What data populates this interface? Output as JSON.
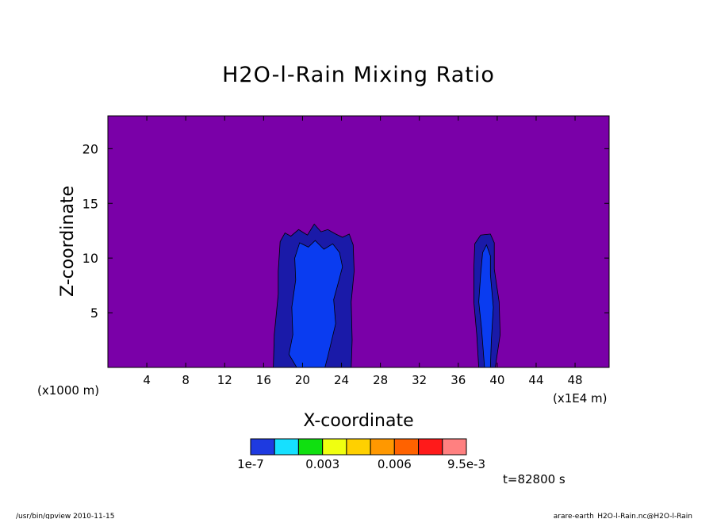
{
  "chart_data": {
    "type": "contour",
    "title": "H2O-l-Rain Mixing Ratio",
    "xlabel": "X-coordinate",
    "ylabel": "Z-coordinate",
    "x_unit_left": "(x1000 m)",
    "x_unit_right": "(x1E4 m)",
    "xlim": [
      0,
      51.5
    ],
    "ylim": [
      0,
      23
    ],
    "x_ticks": [
      4,
      8,
      12,
      16,
      20,
      24,
      28,
      32,
      36,
      40,
      44,
      48
    ],
    "y_ticks": [
      5,
      10,
      15,
      20
    ],
    "background_color": "#7a00a8",
    "levels": [
      {
        "color": "#1e3ae0"
      },
      {
        "color": "#16e0ff"
      },
      {
        "color": "#10e010"
      },
      {
        "color": "#f0ff10"
      },
      {
        "color": "#ffd000"
      },
      {
        "color": "#ff9800"
      },
      {
        "color": "#ff6200"
      },
      {
        "color": "#ff1a1a"
      },
      {
        "color": "#ff8080"
      }
    ],
    "colorbar_labels": [
      "1e-7",
      "0.003",
      "0.006",
      "9.5e-3"
    ],
    "regions": [
      {
        "level": "outer",
        "color": "#1a1aa8",
        "points": [
          [
            17.0,
            0
          ],
          [
            17.1,
            3
          ],
          [
            17.5,
            6.7
          ],
          [
            17.5,
            8.8
          ],
          [
            17.7,
            11.5
          ],
          [
            18.2,
            12.3
          ],
          [
            18.8,
            12.0
          ],
          [
            19.6,
            12.6
          ],
          [
            20.5,
            12.1
          ],
          [
            21.2,
            13.1
          ],
          [
            21.9,
            12.4
          ],
          [
            22.6,
            12.6
          ],
          [
            23.4,
            12.2
          ],
          [
            24.1,
            11.9
          ],
          [
            24.8,
            12.2
          ],
          [
            25.2,
            11.2
          ],
          [
            25.3,
            8.8
          ],
          [
            25.0,
            6.0
          ],
          [
            25.1,
            2.5
          ],
          [
            25.0,
            0
          ]
        ]
      },
      {
        "level": "inner",
        "color": "#0a3cf0",
        "points": [
          [
            19.4,
            0
          ],
          [
            18.6,
            1.2
          ],
          [
            19.0,
            3.0
          ],
          [
            18.9,
            5.5
          ],
          [
            19.3,
            8.0
          ],
          [
            19.2,
            10.0
          ],
          [
            19.7,
            11.4
          ],
          [
            20.6,
            11.0
          ],
          [
            21.3,
            11.6
          ],
          [
            22.2,
            10.8
          ],
          [
            23.1,
            11.3
          ],
          [
            23.8,
            10.5
          ],
          [
            24.1,
            9.2
          ],
          [
            23.6,
            7.5
          ],
          [
            23.2,
            6.2
          ],
          [
            23.4,
            4.0
          ],
          [
            22.6,
            1.0
          ],
          [
            22.3,
            0
          ]
        ]
      },
      {
        "level": "outer",
        "color": "#1a1aa8",
        "points": [
          [
            38.1,
            0
          ],
          [
            37.9,
            3
          ],
          [
            37.6,
            6
          ],
          [
            37.6,
            9
          ],
          [
            37.7,
            11.3
          ],
          [
            38.3,
            12.1
          ],
          [
            39.3,
            12.2
          ],
          [
            39.7,
            11.4
          ],
          [
            39.7,
            9.0
          ],
          [
            40.2,
            6.0
          ],
          [
            40.3,
            3.0
          ],
          [
            39.8,
            0
          ]
        ]
      },
      {
        "level": "inner",
        "color": "#0a3cf0",
        "points": [
          [
            38.7,
            0
          ],
          [
            38.4,
            3.5
          ],
          [
            38.1,
            6.0
          ],
          [
            38.3,
            8.5
          ],
          [
            38.5,
            10.5
          ],
          [
            38.9,
            11.2
          ],
          [
            39.3,
            10.2
          ],
          [
            39.3,
            8.5
          ],
          [
            39.6,
            5.5
          ],
          [
            39.4,
            2.5
          ],
          [
            39.3,
            0
          ]
        ]
      }
    ]
  },
  "time_label": "t=82800 s",
  "footer_left": "/usr/bin/gpview   2010-11-15",
  "footer_right": "arare-earth_H2O-l-Rain.nc@H2O-l-Rain"
}
